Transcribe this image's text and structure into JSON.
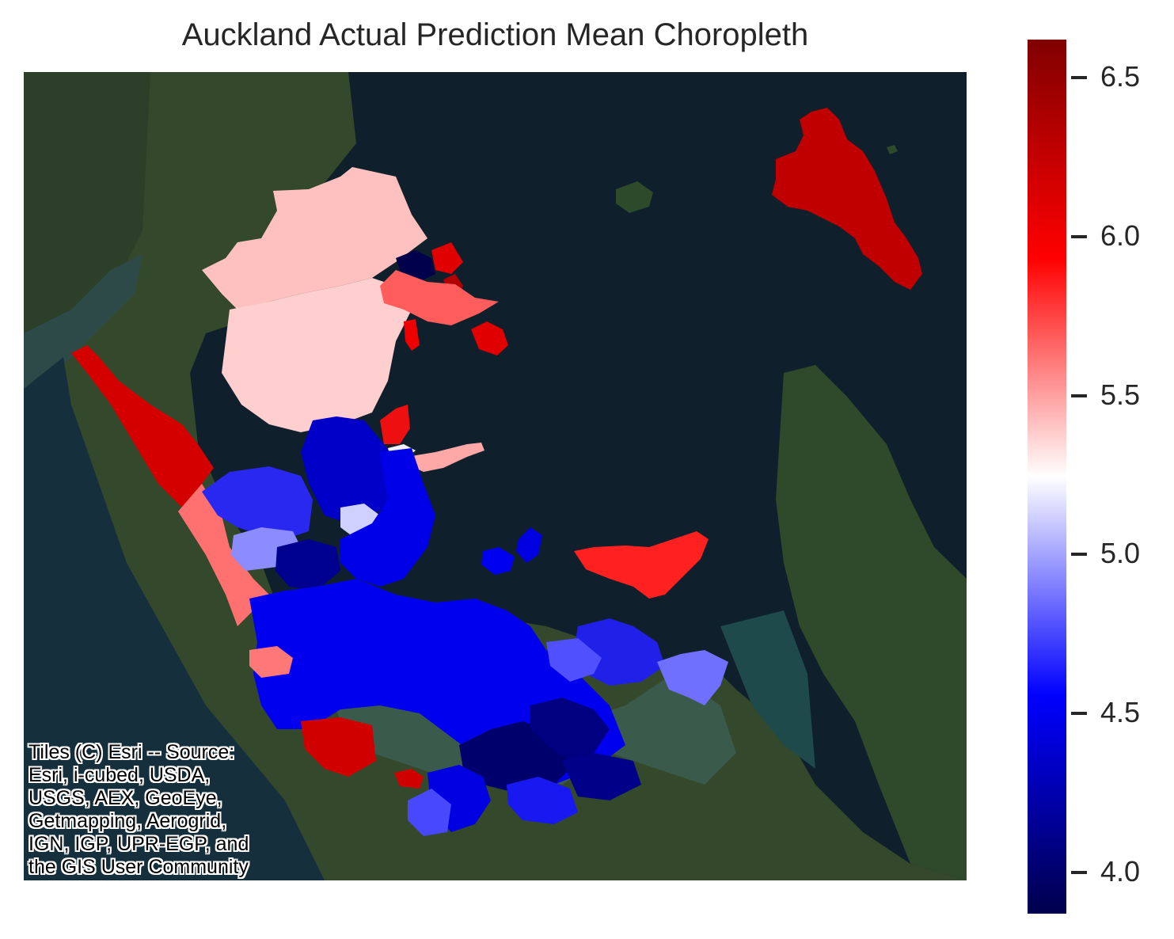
{
  "title": "Auckland Actual Prediction Mean Choropleth",
  "attribution": "Tiles (C) Esri -- Source:\nEsri, i-cubed, USDA,\nUSGS, AEX, GeoEye,\nGetmapping, Aerogrid,\nIGN, IGP, UPR-EGP, and\nthe GIS User Community",
  "colorbar": {
    "colormap": "seismic",
    "min": 3.87,
    "max": 6.62,
    "ticks": [
      "4.0",
      "4.5",
      "5.0",
      "5.5",
      "6.0",
      "6.5"
    ]
  },
  "basemap": "satellite imagery"
}
